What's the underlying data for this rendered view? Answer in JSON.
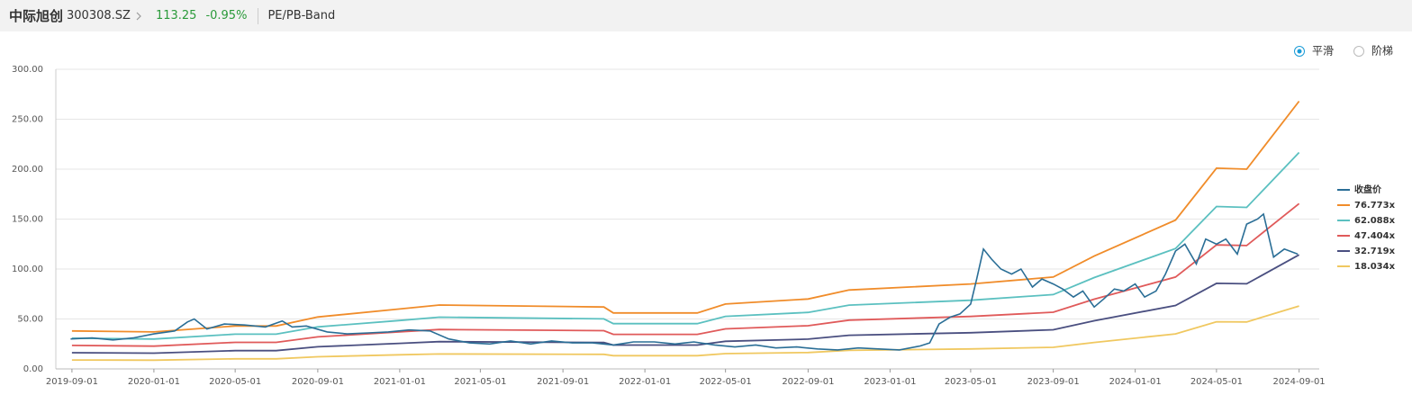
{
  "header": {
    "stock_name": "中际旭创",
    "code": "300308.SZ",
    "price": "113.25",
    "change": "-0.95%",
    "tab": "PE/PB-Band"
  },
  "options": [
    "平滑",
    "阶梯"
  ],
  "chart_data": {
    "type": "line",
    "xlim": [
      "2019-08-08",
      "2024-10-01"
    ],
    "xticks": [
      "2019-09-01",
      "2020-01-01",
      "2020-05-01",
      "2020-09-01",
      "2021-01-01",
      "2021-05-01",
      "2021-09-01",
      "2022-01-01",
      "2022-05-01",
      "2022-09-01",
      "2023-01-01",
      "2023-05-01",
      "2023-09-01",
      "2024-01-01",
      "2024-05-01",
      "2024-09-01"
    ],
    "ylim": [
      0,
      300
    ],
    "yticks": [
      {
        "value": 0,
        "label": "0.00"
      },
      {
        "value": 50,
        "label": "50.00"
      },
      {
        "value": 100,
        "label": "100.00"
      },
      {
        "value": 150,
        "label": "150.00"
      },
      {
        "value": 200,
        "label": "200.00"
      },
      {
        "value": 250,
        "label": "250.00"
      },
      {
        "value": 300,
        "label": "300.00"
      }
    ],
    "grid": true,
    "legend": "right",
    "series": [
      {
        "name": "收盘价",
        "color": "#2a6e96",
        "x": [
          "2019-08-30",
          "2019-10-01",
          "2019-11-01",
          "2019-12-01",
          "2020-01-01",
          "2020-02-01",
          "2020-02-20",
          "2020-03-01",
          "2020-03-20",
          "2020-04-15",
          "2020-05-15",
          "2020-06-15",
          "2020-07-10",
          "2020-07-25",
          "2020-08-15",
          "2020-09-15",
          "2020-10-15",
          "2020-11-15",
          "2020-12-15",
          "2021-01-15",
          "2021-02-15",
          "2021-03-15",
          "2021-04-15",
          "2021-05-15",
          "2021-06-15",
          "2021-07-15",
          "2021-08-15",
          "2021-09-15",
          "2021-10-15",
          "2021-11-15",
          "2021-12-15",
          "2022-01-15",
          "2022-02-15",
          "2022-03-15",
          "2022-04-15",
          "2022-05-15",
          "2022-06-15",
          "2022-07-15",
          "2022-08-15",
          "2022-09-15",
          "2022-10-15",
          "2022-11-15",
          "2022-12-15",
          "2023-01-15",
          "2023-02-15",
          "2023-03-01",
          "2023-03-15",
          "2023-04-01",
          "2023-04-15",
          "2023-05-01",
          "2023-05-10",
          "2023-05-20",
          "2023-06-01",
          "2023-06-15",
          "2023-07-01",
          "2023-07-15",
          "2023-08-01",
          "2023-08-15",
          "2023-09-01",
          "2023-09-15",
          "2023-10-01",
          "2023-10-15",
          "2023-11-01",
          "2023-11-15",
          "2023-12-01",
          "2023-12-15",
          "2024-01-01",
          "2024-01-15",
          "2024-02-01",
          "2024-02-15",
          "2024-03-01",
          "2024-03-15",
          "2024-04-01",
          "2024-04-15",
          "2024-05-01",
          "2024-05-15",
          "2024-06-01",
          "2024-06-15",
          "2024-07-01",
          "2024-07-10",
          "2024-07-25",
          "2024-08-10",
          "2024-08-30"
        ],
        "values": [
          30,
          31,
          29,
          31,
          35,
          38,
          47,
          50,
          40,
          45,
          44,
          42,
          48,
          42,
          43,
          37,
          35,
          36,
          37,
          39,
          38,
          30,
          26,
          25,
          28,
          25,
          28,
          26,
          26,
          24,
          27,
          27,
          25,
          27,
          24,
          22,
          24,
          21,
          22,
          20,
          19,
          21,
          20,
          19,
          23,
          26,
          45,
          52,
          55,
          65,
          90,
          120,
          110,
          100,
          95,
          100,
          82,
          90,
          85,
          80,
          72,
          78,
          62,
          70,
          80,
          78,
          85,
          72,
          78,
          95,
          118,
          125,
          105,
          130,
          125,
          130,
          115,
          145,
          150,
          155,
          112,
          120,
          115
        ]
      },
      {
        "name": "76.773x",
        "color": "#f08c2a",
        "x": [
          "2019-09-01",
          "2020-01-01",
          "2020-05-01",
          "2020-07-01",
          "2020-09-01",
          "2021-01-01",
          "2021-03-01",
          "2021-11-01",
          "2021-11-15",
          "2022-03-20",
          "2022-05-01",
          "2022-09-01",
          "2022-11-01",
          "2023-05-01",
          "2023-09-01",
          "2023-11-01",
          "2024-03-01",
          "2024-05-01",
          "2024-06-15",
          "2024-09-01"
        ],
        "values": [
          38,
          37,
          43,
          43,
          52,
          60,
          64,
          62,
          56,
          56,
          65,
          70,
          79,
          85,
          92,
          113,
          149,
          201,
          200,
          268
        ]
      },
      {
        "name": "62.088x",
        "color": "#5bc0c0",
        "x": [
          "2019-09-01",
          "2020-01-01",
          "2020-05-01",
          "2020-07-01",
          "2020-09-01",
          "2021-01-01",
          "2021-03-01",
          "2021-11-01",
          "2021-11-15",
          "2022-03-20",
          "2022-05-01",
          "2022-09-01",
          "2022-11-01",
          "2023-05-01",
          "2023-09-01",
          "2023-11-01",
          "2024-03-01",
          "2024-05-01",
          "2024-06-15",
          "2024-09-01"
        ],
        "values": [
          30.7,
          29.9,
          34.8,
          34.8,
          42.1,
          48.5,
          51.8,
          50.1,
          45.3,
          45.3,
          52.6,
          56.6,
          63.9,
          68.7,
          74.4,
          91.4,
          120.5,
          162.6,
          161.7,
          216.7
        ]
      },
      {
        "name": "47.404x",
        "color": "#e05a5a",
        "x": [
          "2019-09-01",
          "2020-01-01",
          "2020-05-01",
          "2020-07-01",
          "2020-09-01",
          "2021-01-01",
          "2021-03-01",
          "2021-11-01",
          "2021-11-15",
          "2022-03-20",
          "2022-05-01",
          "2022-09-01",
          "2022-11-01",
          "2023-05-01",
          "2023-09-01",
          "2023-11-01",
          "2024-03-01",
          "2024-05-01",
          "2024-06-15",
          "2024-09-01"
        ],
        "values": [
          23.5,
          22.8,
          26.6,
          26.6,
          32.1,
          37.1,
          39.5,
          38.3,
          34.6,
          34.6,
          40.1,
          43.2,
          48.8,
          52.5,
          56.8,
          69.8,
          92.0,
          124.1,
          123.5,
          165.5
        ]
      },
      {
        "name": "32.719x",
        "color": "#4a4f80",
        "x": [
          "2019-09-01",
          "2020-01-01",
          "2020-05-01",
          "2020-07-01",
          "2020-09-01",
          "2021-01-01",
          "2021-03-01",
          "2021-11-01",
          "2021-11-15",
          "2022-03-20",
          "2022-05-01",
          "2022-09-01",
          "2022-11-01",
          "2023-05-01",
          "2023-09-01",
          "2023-11-01",
          "2024-03-01",
          "2024-05-01",
          "2024-06-15",
          "2024-09-01"
        ],
        "values": [
          16.2,
          15.8,
          18.3,
          18.3,
          22.2,
          25.6,
          27.3,
          26.4,
          23.9,
          23.9,
          27.7,
          29.8,
          33.7,
          36.2,
          39.2,
          48.2,
          63.5,
          85.7,
          85.2,
          114.2
        ]
      },
      {
        "name": "18.034x",
        "color": "#f0c860",
        "x": [
          "2019-09-01",
          "2020-01-01",
          "2020-05-01",
          "2020-07-01",
          "2020-09-01",
          "2021-01-01",
          "2021-03-01",
          "2021-11-01",
          "2021-11-15",
          "2022-03-20",
          "2022-05-01",
          "2022-09-01",
          "2022-11-01",
          "2023-05-01",
          "2023-09-01",
          "2023-11-01",
          "2024-03-01",
          "2024-05-01",
          "2024-06-15",
          "2024-09-01"
        ],
        "values": [
          8.9,
          8.7,
          10.1,
          10.1,
          12.2,
          14.1,
          15.0,
          14.6,
          13.2,
          13.2,
          15.3,
          16.4,
          18.6,
          20.0,
          21.6,
          26.5,
          35.0,
          47.2,
          47.0,
          63.0
        ]
      }
    ]
  }
}
